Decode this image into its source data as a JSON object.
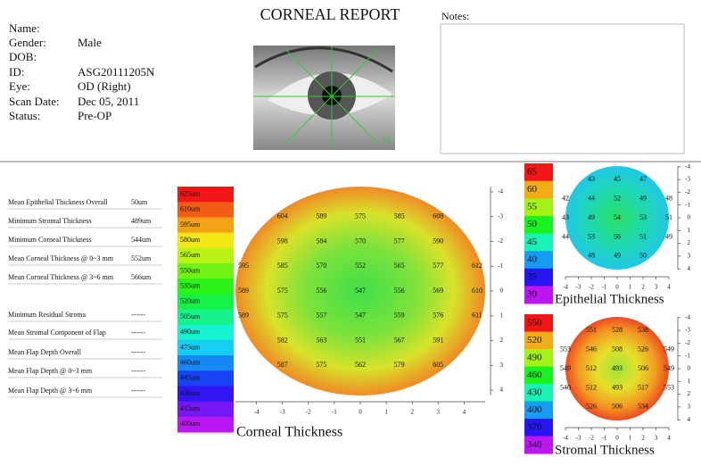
{
  "title": "CORNEAL REPORT",
  "patient": [
    {
      "label": "Name:"
    },
    {
      "label": "Gender:",
      "value": "Male"
    },
    {
      "label": "DOB:"
    },
    {
      "label": "ID:",
      "value": "ASG20111205N"
    },
    {
      "label": "Eye:",
      "value": "OD (Right)"
    },
    {
      "label": "Scan Date:",
      "value": "Dec 05, 2011"
    },
    {
      "label": "Status:",
      "value": "Pre-OP"
    }
  ],
  "notes": "Notes:",
  "eye_image": {
    "label": "N"
  },
  "metrics": [
    {
      "label": "Mean Epithelial Thickness Overall",
      "value": "50um"
    },
    {
      "label": "Minimum Stromal Thickness",
      "value": "489um"
    },
    {
      "label": "Minimum Corneal Thickness",
      "value": "544um"
    },
    {
      "label": "Mean Corneal Thickness @ 0~3 mm",
      "value": "552um"
    },
    {
      "label": "Mean Corneal Thickness @ 3~6 mm",
      "value": "566um"
    },
    {
      "label": "Minimum Residual Stroma",
      "value": "------"
    },
    {
      "label": "Mean Stromal Component of Flap",
      "value": "------"
    },
    {
      "label": "Mean Flap Depth Overall",
      "value": "------"
    },
    {
      "label": "Mean Flap Depth @ 0~3 mm",
      "value": "------"
    },
    {
      "label": "Mean Flap Depth @ 3~6 mm",
      "value": "------"
    }
  ],
  "maps": [
    {
      "title": "Corneal Thickness",
      "scale": [
        "625um",
        "610um",
        "595um",
        "580um",
        "565um",
        "550um",
        "535um",
        "520um",
        "505um",
        "490um",
        "475um",
        "460um",
        "445um",
        "430um",
        "415um",
        "400um"
      ],
      "xticks": [
        -4,
        -3,
        -2,
        -1,
        0,
        1,
        2,
        3,
        4
      ],
      "yticks": [
        -4,
        -3,
        -2,
        -1,
        0,
        1,
        2,
        3,
        4
      ],
      "rows": [
        {
          "y": -3,
          "x": [
            -3,
            -1.5,
            0,
            1.5,
            3
          ],
          "values": [
            604,
            589,
            575,
            585,
            608
          ]
        },
        {
          "y": -2,
          "x": [
            -3,
            -1.5,
            0,
            1.5,
            3
          ],
          "values": [
            598,
            584,
            570,
            577,
            590
          ]
        },
        {
          "y": -1,
          "x": [
            -4.5,
            -3,
            -1.5,
            0,
            1.5,
            3,
            4.5
          ],
          "values": [
            595,
            585,
            570,
            552,
            565,
            577,
            612
          ]
        },
        {
          "y": 0,
          "x": [
            -4.5,
            -3,
            -1.5,
            0,
            1.5,
            3,
            4.5
          ],
          "values": [
            589,
            575,
            556,
            547,
            556,
            569,
            610
          ]
        },
        {
          "y": 1,
          "x": [
            -4.5,
            -3,
            -1.5,
            0,
            1.5,
            3,
            4.5
          ],
          "values": [
            589,
            575,
            557,
            547,
            559,
            576,
            611
          ]
        },
        {
          "y": 2,
          "x": [
            -3,
            -1.5,
            0,
            1.5,
            3
          ],
          "values": [
            582,
            563,
            551,
            567,
            591
          ]
        },
        {
          "y": 3,
          "x": [
            -3,
            -1.5,
            0,
            1.5,
            3
          ],
          "values": [
            587,
            575,
            562,
            579,
            605
          ]
        }
      ]
    },
    {
      "title": "Epithelial Thickness",
      "scale": [
        65,
        60,
        55,
        50,
        45,
        40,
        35,
        30
      ],
      "xticks": [
        -4,
        -3,
        -2,
        -1,
        0,
        1,
        2,
        3,
        4
      ],
      "yticks": [
        -4,
        -3,
        -2,
        -1,
        0,
        1,
        2,
        3,
        4
      ],
      "rows": [
        {
          "y": -3,
          "x": [
            -2,
            0,
            2
          ],
          "values": [
            43,
            45,
            47
          ]
        },
        {
          "y": -1.5,
          "x": [
            -4,
            -2,
            0,
            2,
            4
          ],
          "values": [
            42,
            44,
            52,
            49,
            48
          ]
        },
        {
          "y": 0,
          "x": [
            -4,
            -2,
            0,
            2,
            4
          ],
          "values": [
            43,
            49,
            54,
            53,
            51
          ]
        },
        {
          "y": 1.5,
          "x": [
            -4,
            -2,
            0,
            2,
            4
          ],
          "values": [
            44,
            53,
            56,
            51,
            49
          ]
        },
        {
          "y": 3,
          "x": [
            -2,
            0,
            2
          ],
          "values": [
            48,
            49,
            50
          ]
        }
      ]
    },
    {
      "title": "Stromal Thickness",
      "scale": [
        550,
        520,
        490,
        460,
        430,
        400,
        370,
        340
      ],
      "xticks": [
        -4,
        -3,
        -2,
        -1,
        0,
        1,
        2,
        3,
        4
      ],
      "yticks": [
        -4,
        -3,
        -2,
        -1,
        0,
        1,
        2,
        3,
        4
      ],
      "rows": [
        {
          "y": -3,
          "x": [
            -2,
            0,
            2
          ],
          "values": [
            551,
            528,
            538
          ]
        },
        {
          "y": -1.5,
          "x": [
            -4,
            -2,
            0,
            2,
            4
          ],
          "values": [
            553,
            546,
            508,
            526,
            549
          ]
        },
        {
          "y": 0,
          "x": [
            -4,
            -2,
            0,
            2,
            4
          ],
          "values": [
            549,
            512,
            493,
            506,
            549
          ]
        },
        {
          "y": 1.5,
          "x": [
            -4,
            -2,
            0,
            2,
            4
          ],
          "values": [
            540,
            512,
            493,
            517,
            553
          ]
        },
        {
          "y": 3,
          "x": [
            -2,
            0,
            2
          ],
          "values": [
            526,
            506,
            534
          ]
        }
      ]
    }
  ]
}
